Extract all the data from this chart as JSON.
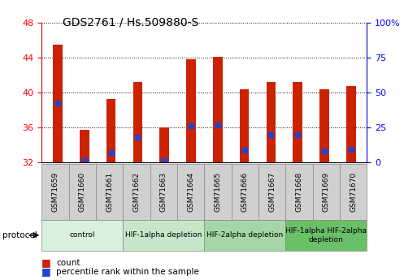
{
  "title": "GDS2761 / Hs.509880-S",
  "samples": [
    "GSM71659",
    "GSM71660",
    "GSM71661",
    "GSM71662",
    "GSM71663",
    "GSM71664",
    "GSM71665",
    "GSM71666",
    "GSM71667",
    "GSM71668",
    "GSM71669",
    "GSM71670"
  ],
  "bar_heights": [
    45.5,
    35.7,
    39.2,
    41.2,
    36.0,
    43.8,
    44.1,
    40.4,
    41.2,
    41.2,
    40.4,
    40.7
  ],
  "blue_markers": [
    38.8,
    32.2,
    33.1,
    34.9,
    32.2,
    36.2,
    36.3,
    33.4,
    35.2,
    35.2,
    33.3,
    33.5
  ],
  "bar_bottom": 32.0,
  "ylim": [
    32,
    48
  ],
  "yticks_left": [
    32,
    36,
    40,
    44,
    48
  ],
  "yticks_right": [
    0,
    25,
    50,
    75,
    100
  ],
  "y_right_labels": [
    "0",
    "25",
    "50",
    "75",
    "100%"
  ],
  "bar_color": "#cc2200",
  "blue_color": "#2244cc",
  "protocols": [
    {
      "label": "control",
      "start": 0,
      "end": 3,
      "color": "#d9f0da"
    },
    {
      "label": "HIF-1alpha depletion",
      "start": 3,
      "end": 6,
      "color": "#c8e6c9"
    },
    {
      "label": "HIF-2alpha depletion",
      "start": 6,
      "end": 9,
      "color": "#a5d6a7"
    },
    {
      "label": "HIF-1alpha HIF-2alpha\ndepletion",
      "start": 9,
      "end": 12,
      "color": "#6abf69"
    }
  ],
  "legend_count_label": "count",
  "legend_pct_label": "percentile rank within the sample",
  "protocol_label": "protocol",
  "bar_width": 0.35,
  "marker_size": 4.5
}
